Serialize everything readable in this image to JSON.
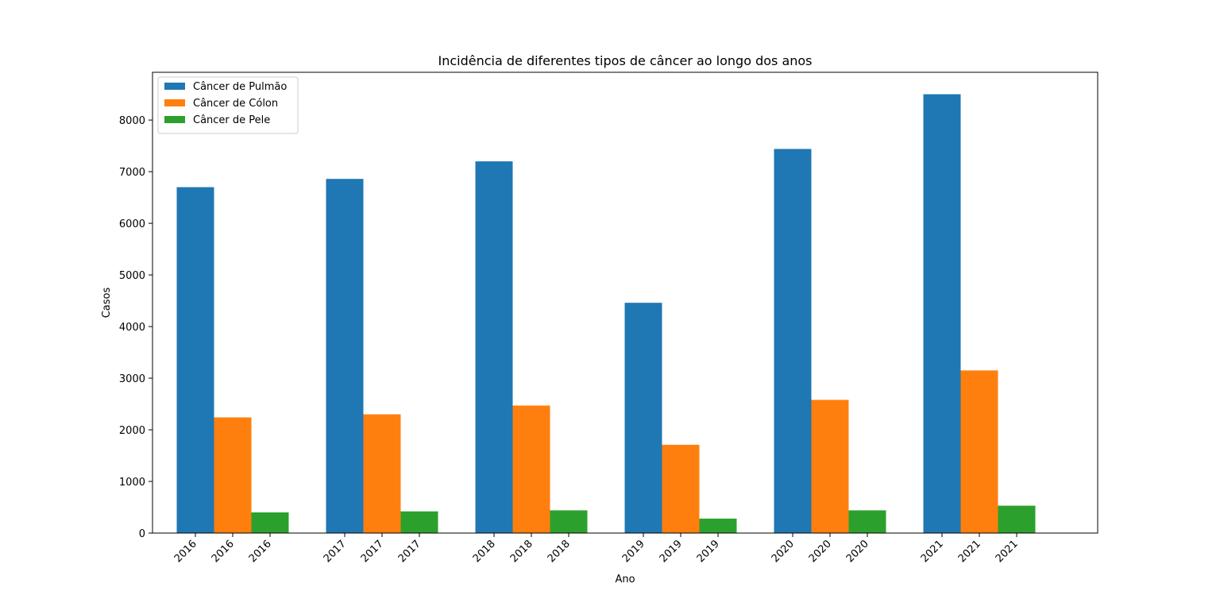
{
  "chart_data": {
    "type": "bar",
    "title": "Incidência de diferentes tipos de câncer ao longo dos anos",
    "xlabel": "Ano",
    "ylabel": "Casos",
    "categories": [
      "2016",
      "2017",
      "2018",
      "2019",
      "2020",
      "2021"
    ],
    "series": [
      {
        "name": "Câncer de Pulmão",
        "color": "#1f77b4",
        "values": [
          6700,
          6860,
          7200,
          4460,
          7440,
          8500
        ]
      },
      {
        "name": "Câncer de Cólon",
        "color": "#ff7f0e",
        "values": [
          2240,
          2300,
          2470,
          1710,
          2580,
          3150
        ]
      },
      {
        "name": "Câncer de Pele",
        "color": "#2ca02c",
        "values": [
          400,
          420,
          440,
          280,
          440,
          530
        ]
      }
    ],
    "ylim": [
      0,
      8925
    ],
    "yticks": [
      0,
      1000,
      2000,
      3000,
      4000,
      5000,
      6000,
      7000,
      8000
    ],
    "legend_position": "top-left",
    "grid": false,
    "x_tick_labels_per_bar": true
  }
}
